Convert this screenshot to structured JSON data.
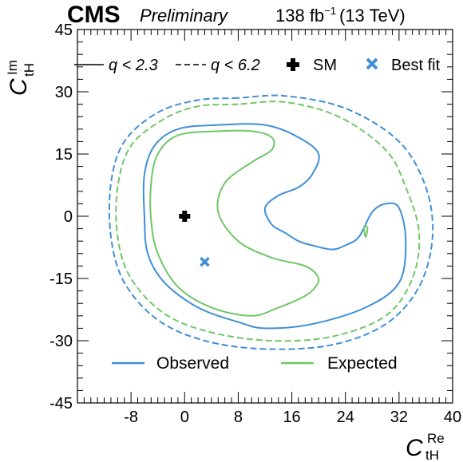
{
  "header": {
    "experiment": "CMS",
    "status": "Preliminary",
    "lumi_prefix": "138 fb",
    "lumi_exp": "−1",
    "lumi_suffix": "(13 TeV)"
  },
  "axes": {
    "x_main": "C",
    "x_sub": "tH",
    "x_sup": "Re",
    "y_main": "C",
    "y_sub": "tH",
    "y_sup": "Im"
  },
  "legend_top": {
    "solid": "q < 2.3",
    "dashed": "q < 6.2",
    "sm": "SM",
    "best": "Best fit"
  },
  "legend_bottom": {
    "observed": "Observed",
    "expected": "Expected"
  },
  "colors": {
    "observed": "#3f8fd8",
    "expected": "#6fc766",
    "sm": "#000000",
    "best_fit": "#3f8fd8"
  },
  "chart_data": {
    "type": "scatter",
    "xlim": [
      -16,
      40
    ],
    "ylim": [
      -45,
      45
    ],
    "x_ticks": [
      -8,
      0,
      8,
      16,
      24,
      32,
      40
    ],
    "y_ticks": [
      -45,
      -30,
      -15,
      0,
      15,
      30,
      45
    ],
    "points": [
      {
        "name": "SM",
        "x": 0,
        "y": 0
      },
      {
        "name": "Best fit",
        "x": 3,
        "y": -11
      }
    ],
    "series": [
      {
        "name": "Observed",
        "level": "q < 6.2",
        "points": [
          [
            8,
            28.5
          ],
          [
            2,
            28
          ],
          [
            -4,
            25
          ],
          [
            -9,
            18
          ],
          [
            -11,
            8
          ],
          [
            -11,
            -5
          ],
          [
            -9,
            -16
          ],
          [
            -4,
            -25
          ],
          [
            3,
            -30
          ],
          [
            12,
            -32
          ],
          [
            22,
            -31
          ],
          [
            30,
            -26
          ],
          [
            35,
            -17
          ],
          [
            37,
            -5
          ],
          [
            36,
            7
          ],
          [
            32,
            18
          ],
          [
            24,
            26
          ],
          [
            15,
            29
          ],
          [
            8,
            28.5
          ]
        ]
      },
      {
        "name": "Expected",
        "level": "q < 6.2",
        "points": [
          [
            8,
            27
          ],
          [
            2,
            26.5
          ],
          [
            -3,
            23.5
          ],
          [
            -8,
            17
          ],
          [
            -10,
            7
          ],
          [
            -10,
            -5
          ],
          [
            -8,
            -15
          ],
          [
            -3,
            -23.5
          ],
          [
            4,
            -28
          ],
          [
            13,
            -30
          ],
          [
            22,
            -29
          ],
          [
            30,
            -24
          ],
          [
            34,
            -15
          ],
          [
            35,
            -4
          ],
          [
            33,
            7
          ],
          [
            30,
            16
          ],
          [
            23,
            24
          ],
          [
            15,
            27.5
          ],
          [
            8,
            27
          ]
        ]
      },
      {
        "name": "Observed",
        "level": "q < 2.3",
        "points": [
          [
            5,
            22
          ],
          [
            -1,
            21
          ],
          [
            -4.5,
            17
          ],
          [
            -6,
            10
          ],
          [
            -6,
            0
          ],
          [
            -5.5,
            -9
          ],
          [
            -3,
            -16
          ],
          [
            2,
            -22
          ],
          [
            8,
            -25.5
          ],
          [
            12,
            -27
          ],
          [
            19,
            -26
          ],
          [
            27,
            -22
          ],
          [
            32,
            -16
          ],
          [
            33,
            -6
          ],
          [
            32,
            2
          ],
          [
            30,
            3
          ],
          [
            28,
            1
          ],
          [
            26,
            -5
          ],
          [
            24,
            -7
          ],
          [
            22,
            -8
          ],
          [
            19,
            -7
          ],
          [
            17,
            -6
          ],
          [
            15,
            -4
          ],
          [
            13,
            -2
          ],
          [
            12,
            2
          ],
          [
            14,
            5
          ],
          [
            17,
            7
          ],
          [
            19,
            10
          ],
          [
            20,
            15
          ],
          [
            17,
            19
          ],
          [
            12,
            22
          ],
          [
            5,
            22
          ]
        ]
      },
      {
        "name": "Expected",
        "level": "q < 2.3",
        "points": [
          [
            5,
            20.5
          ],
          [
            -1,
            19.5
          ],
          [
            -4,
            15
          ],
          [
            -5,
            8
          ],
          [
            -5,
            -1
          ],
          [
            -4,
            -9
          ],
          [
            -1,
            -17
          ],
          [
            4,
            -22
          ],
          [
            10,
            -24
          ],
          [
            14,
            -22
          ],
          [
            17,
            -20
          ],
          [
            19,
            -18
          ],
          [
            20,
            -15
          ],
          [
            18,
            -12
          ],
          [
            13,
            -10
          ],
          [
            8,
            -6
          ],
          [
            5,
            1
          ],
          [
            6,
            8
          ],
          [
            10,
            13
          ],
          [
            13,
            16
          ],
          [
            13,
            19
          ],
          [
            10,
            20.5
          ],
          [
            5,
            20.5
          ]
        ]
      },
      {
        "name": "Expected",
        "level": "q < 2.3",
        "points": [
          [
            26.8,
            -2.5
          ],
          [
            27.3,
            -2.8
          ],
          [
            27,
            -5
          ],
          [
            26.8,
            -2.5
          ]
        ]
      }
    ]
  }
}
